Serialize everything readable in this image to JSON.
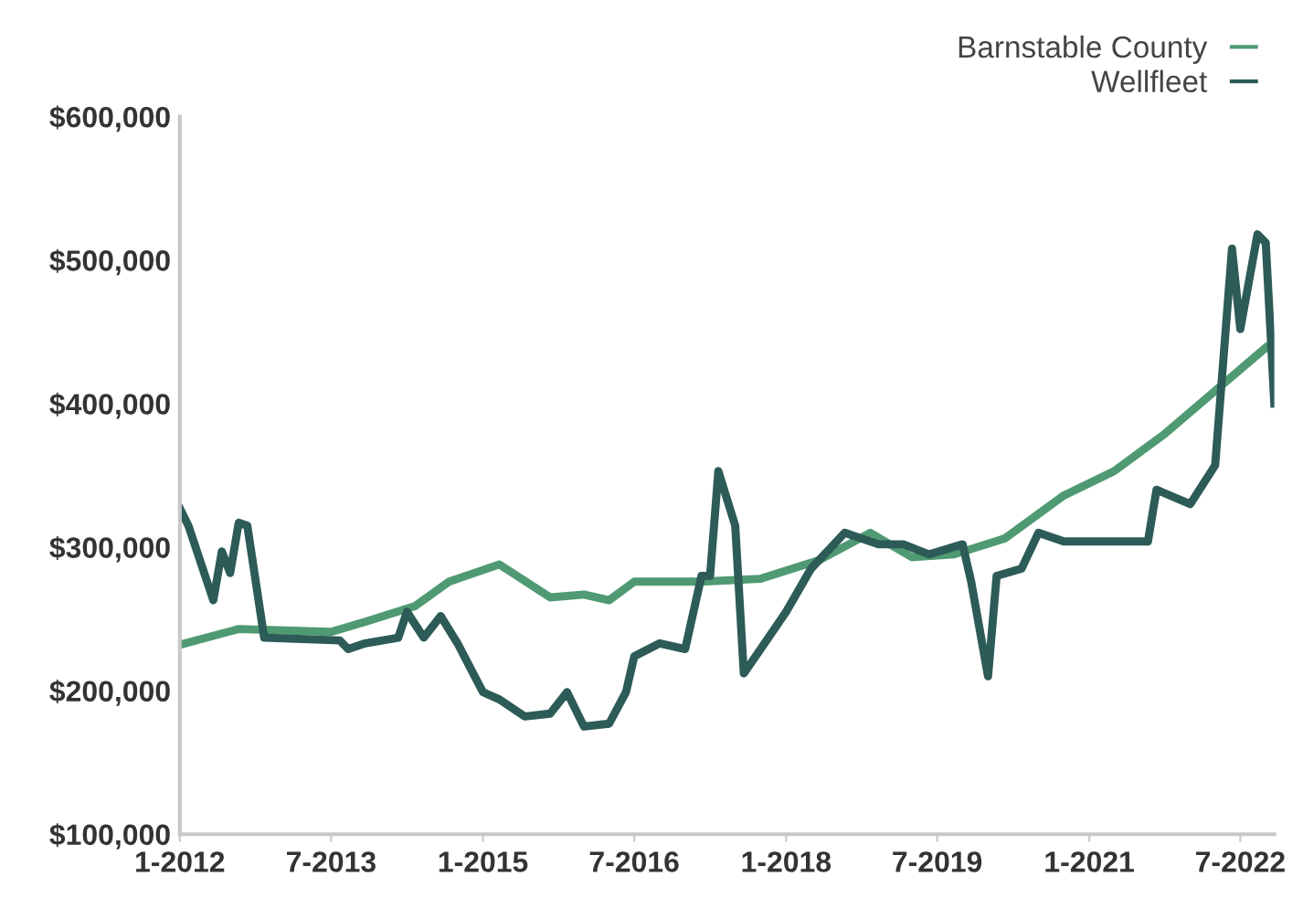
{
  "chart_data": {
    "type": "line",
    "x": [
      "2012-01",
      "2012-08",
      "2013-07",
      "2013-11",
      "2014-05",
      "2014-09",
      "2015-03",
      "2015-09",
      "2016-01",
      "2016-04",
      "2016-07",
      "2017-03",
      "2017-10",
      "2018-05",
      "2018-11",
      "2019-04",
      "2019-09",
      "2020-03",
      "2020-10",
      "2021-04",
      "2021-10",
      "2022-04",
      "2022-10"
    ],
    "series": [
      {
        "name": "Barnstable County",
        "color": "#4f9a72",
        "values": [
          232000,
          243000,
          241000,
          248000,
          259000,
          276000,
          288000,
          265000,
          267000,
          263000,
          276000,
          276000,
          278000,
          291000,
          310000,
          293000,
          295000,
          306000,
          336000,
          353000,
          379000,
          409000,
          439000
        ]
      },
      {
        "name": "Wellfleet",
        "color": "#2d5b57",
        "x": [
          "2012-01",
          "2012-02",
          "2012-05",
          "2012-06",
          "2012-07",
          "2012-08",
          "2012-09",
          "2012-11",
          "2013-08",
          "2013-09",
          "2013-11",
          "2014-03",
          "2014-04",
          "2014-06",
          "2014-08",
          "2014-10",
          "2015-01",
          "2015-03",
          "2015-06",
          "2015-09",
          "2015-11",
          "2016-01",
          "2016-04",
          "2016-06",
          "2016-07",
          "2016-10",
          "2017-01",
          "2017-03",
          "2017-04",
          "2017-05",
          "2017-07",
          "2017-08",
          "2017-10",
          "2018-01",
          "2018-04",
          "2018-08",
          "2018-12",
          "2019-03",
          "2019-06",
          "2019-10",
          "2019-11",
          "2020-01",
          "2020-02",
          "2020-05",
          "2020-07",
          "2020-10",
          "2021-08",
          "2021-09",
          "2022-01",
          "2022-04",
          "2022-06",
          "2022-07",
          "2022-09",
          "2022-10",
          "2022-11"
        ],
        "values": [
          327000,
          315000,
          263000,
          297000,
          282000,
          317000,
          315000,
          237000,
          235000,
          229000,
          233000,
          237000,
          255000,
          237000,
          252000,
          233000,
          199000,
          194000,
          182000,
          184000,
          199000,
          175000,
          177000,
          199000,
          224000,
          233000,
          229000,
          280000,
          280000,
          353000,
          315000,
          212000,
          229000,
          255000,
          285000,
          310000,
          302000,
          302000,
          295000,
          302000,
          276000,
          210000,
          280000,
          285000,
          310000,
          304000,
          304000,
          340000,
          330000,
          357000,
          508000,
          452000,
          518000,
          512000,
          400000
        ]
      }
    ],
    "xlim": [
      "2012-01",
      "2022-11"
    ],
    "xticks": [
      {
        "value": "2012-01",
        "label": "1-2012"
      },
      {
        "value": "2013-07",
        "label": "7-2013"
      },
      {
        "value": "2015-01",
        "label": "1-2015"
      },
      {
        "value": "2016-07",
        "label": "7-2016"
      },
      {
        "value": "2018-01",
        "label": "1-2018"
      },
      {
        "value": "2019-07",
        "label": "7-2019"
      },
      {
        "value": "2021-01",
        "label": "1-2021"
      },
      {
        "value": "2022-07",
        "label": "7-2022"
      }
    ],
    "ylim": [
      100000,
      600000
    ],
    "yticks": [
      {
        "value": 100000,
        "label": "$100,000"
      },
      {
        "value": 200000,
        "label": "$200,000"
      },
      {
        "value": 300000,
        "label": "$300,000"
      },
      {
        "value": 400000,
        "label": "$400,000"
      },
      {
        "value": 500000,
        "label": "$500,000"
      },
      {
        "value": 600000,
        "label": "$600,000"
      }
    ],
    "grid": false,
    "legend": "top right",
    "marker": "none",
    "line_style": "solid"
  }
}
